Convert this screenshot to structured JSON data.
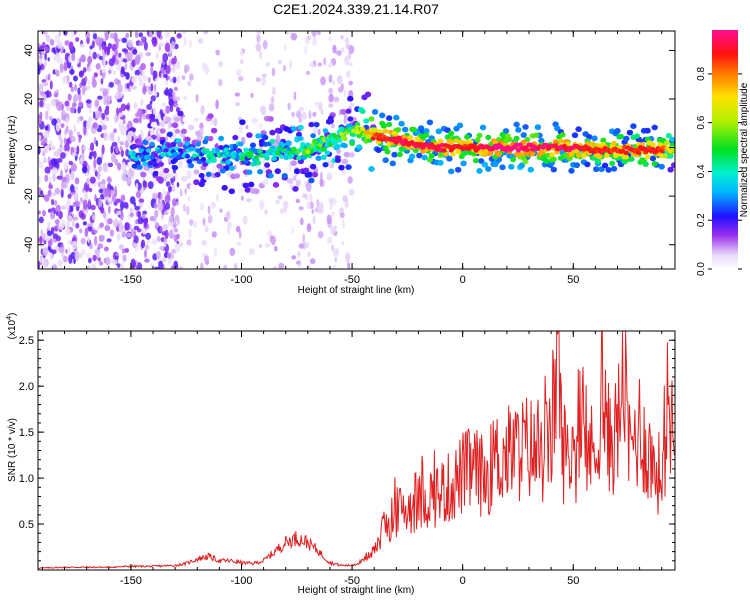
{
  "figure_title": "C2E1.2024.339.21.14.R07",
  "chart_data": [
    {
      "type": "heatmap",
      "title": "C2E1.2024.339.21.14.R07",
      "xlabel": "Height of straight line (km)",
      "ylabel": "Frequency (Hz)",
      "xlim": [
        -192,
        96
      ],
      "ylim": [
        -50,
        48
      ],
      "xticks": [
        -150,
        -100,
        -50,
        0,
        50
      ],
      "yticks": [
        -40,
        -20,
        0,
        20,
        40
      ],
      "grid": false,
      "colorbar": {
        "label": "Normalized spectral amplitude",
        "range": [
          0.0,
          0.98
        ],
        "ticks": [
          0.0,
          0.2,
          0.4,
          0.6,
          0.8
        ]
      },
      "ridge": {
        "x": [
          -150,
          -130,
          -120,
          -100,
          -90,
          -80,
          -70,
          -60,
          -50,
          -45,
          -40,
          -30,
          -20,
          -10,
          0,
          10,
          20,
          30,
          40,
          50,
          60,
          70,
          80,
          90,
          96
        ],
        "y": [
          -3,
          -2,
          -2,
          -3,
          -2,
          -2,
          0,
          3,
          6,
          7,
          5,
          3,
          1,
          0,
          0,
          0,
          0,
          0,
          0,
          0,
          -1,
          -1,
          -1,
          -1,
          0
        ],
        "amplitude": [
          0.3,
          0.3,
          0.35,
          0.4,
          0.4,
          0.45,
          0.5,
          0.5,
          0.55,
          0.6,
          0.85,
          0.95,
          0.95,
          0.95,
          0.9,
          0.95,
          0.98,
          0.98,
          0.95,
          0.95,
          0.9,
          0.9,
          0.9,
          0.9,
          0.6
        ]
      }
    },
    {
      "type": "line",
      "xlabel": "Height of straight line (km)",
      "ylabel": "SNR (10 * v/v)",
      "multiplier": "(x10^4)",
      "xlim": [
        -192,
        96
      ],
      "ylim": [
        0,
        2.6
      ],
      "xticks": [
        -150,
        -100,
        -50,
        0,
        50
      ],
      "yticks": [
        0.5,
        1.0,
        1.5,
        2.0,
        2.5
      ],
      "color": "#e02020",
      "x": [
        -192,
        -180,
        -170,
        -160,
        -150,
        -140,
        -130,
        -125,
        -120,
        -115,
        -110,
        -105,
        -100,
        -95,
        -90,
        -85,
        -80,
        -75,
        -70,
        -65,
        -60,
        -55,
        -50,
        -45,
        -40,
        -37,
        -35,
        -30,
        -25,
        -20,
        -15,
        -10,
        -5,
        0,
        5,
        10,
        15,
        20,
        25,
        30,
        35,
        40,
        43,
        45,
        50,
        55,
        60,
        63,
        65,
        70,
        73,
        75,
        80,
        85,
        90,
        93,
        96
      ],
      "y": [
        0.02,
        0.03,
        0.03,
        0.03,
        0.04,
        0.04,
        0.05,
        0.07,
        0.12,
        0.15,
        0.1,
        0.1,
        0.08,
        0.07,
        0.1,
        0.2,
        0.3,
        0.35,
        0.3,
        0.2,
        0.08,
        0.05,
        0.05,
        0.1,
        0.25,
        0.35,
        0.5,
        0.62,
        0.68,
        0.72,
        0.8,
        0.85,
        0.9,
        1.05,
        1.1,
        1.0,
        1.2,
        1.25,
        1.3,
        1.35,
        1.2,
        1.4,
        2.5,
        1.3,
        1.25,
        1.4,
        1.2,
        2.1,
        1.4,
        1.5,
        2.3,
        1.3,
        1.55,
        1.2,
        1.0,
        1.9,
        1.4
      ]
    }
  ]
}
